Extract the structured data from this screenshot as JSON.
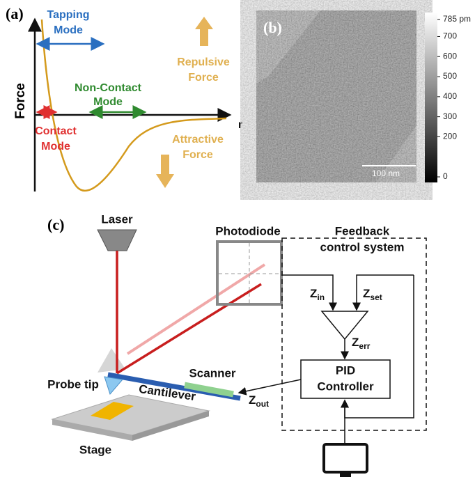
{
  "panel_a": {
    "label": "(a)",
    "y_axis": "Force",
    "x_axis": "r",
    "tapping": [
      "Tapping",
      "Mode"
    ],
    "non_contact": [
      "Non-Contact",
      "Mode"
    ],
    "contact": [
      "Contact",
      "Mode"
    ],
    "repulsive": [
      "Repulsive",
      "Force"
    ],
    "attractive": [
      "Attractive",
      "Force"
    ]
  },
  "panel_b": {
    "label": "(b)",
    "scale_bar": "100 nm",
    "colorbar": {
      "range": [
        0,
        785
      ],
      "ticks": [
        {
          "value": 785,
          "label": "785 pm"
        },
        700,
        600,
        500,
        400,
        300,
        200,
        0
      ]
    }
  },
  "panel_c": {
    "label": "(c)",
    "laser": "Laser",
    "photodiode": "Photodiode",
    "feedback": [
      "Feedback",
      "control system"
    ],
    "z_in": {
      "main": "Z",
      "sub": "in"
    },
    "z_set": {
      "main": "Z",
      "sub": "set"
    },
    "z_err": {
      "main": "Z",
      "sub": "err"
    },
    "z_out": {
      "main": "Z",
      "sub": "out"
    },
    "pid": [
      "PID",
      "Controller"
    ],
    "scanner": "Scanner",
    "cantilever": "Cantilever",
    "probe_tip": "Probe tip",
    "stage": "Stage"
  }
}
